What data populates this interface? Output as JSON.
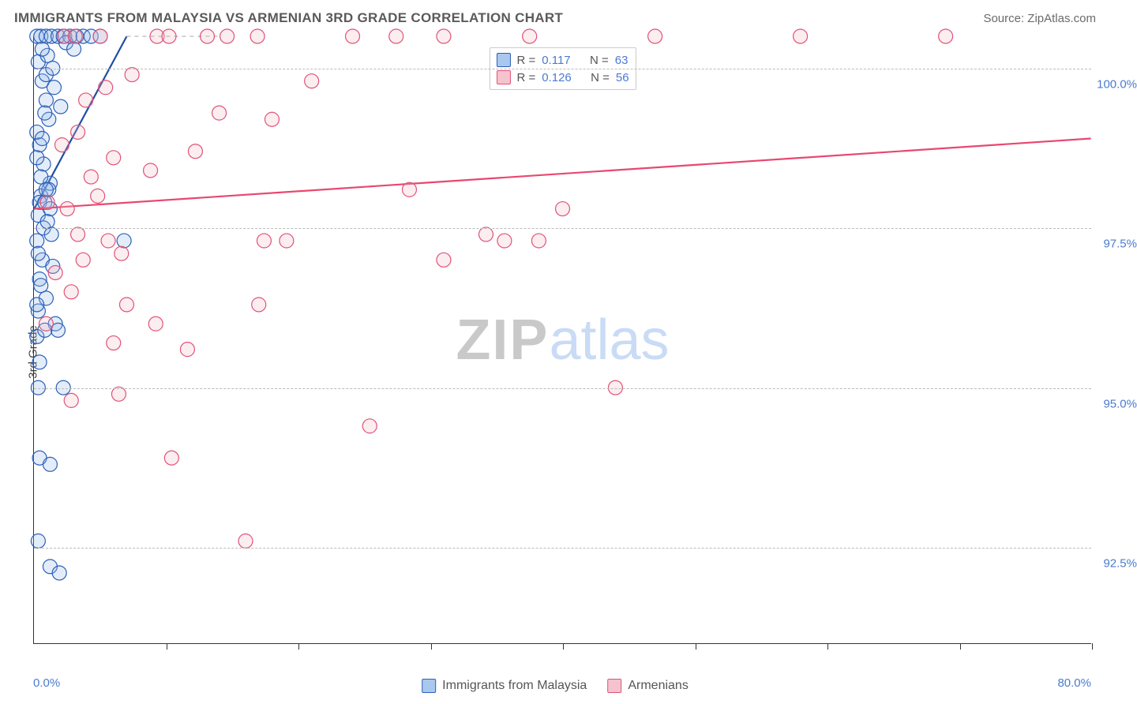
{
  "header": {
    "title": "IMMIGRANTS FROM MALAYSIA VS ARMENIAN 3RD GRADE CORRELATION CHART",
    "source": "Source: ZipAtlas.com"
  },
  "chart": {
    "type": "scatter",
    "ylabel": "3rd Grade",
    "xlim": [
      0,
      80
    ],
    "ylim": [
      91,
      100.5
    ],
    "xtick_positions": [
      0,
      10,
      20,
      30,
      40,
      50,
      60,
      70,
      80
    ],
    "xmin_label": "0.0%",
    "xmax_label": "80.0%",
    "yticks": [
      {
        "value": 92.5,
        "label": "92.5%"
      },
      {
        "value": 95.0,
        "label": "95.0%"
      },
      {
        "value": 97.5,
        "label": "97.5%"
      },
      {
        "value": 100.0,
        "label": "100.0%"
      }
    ],
    "background_color": "#ffffff",
    "grid_color": "#bbbbbb",
    "marker_radius": 9,
    "marker_stroke_width": 1.2,
    "marker_fill_opacity": 0.25,
    "trend_line_width": 2.2,
    "watermark": {
      "zip": "ZIP",
      "atlas": "atlas"
    },
    "legend_top": {
      "rows": [
        {
          "swatch_fill": "#a9c8ee",
          "swatch_stroke": "#2d5fb8",
          "r_label": "R =",
          "r_value": "0.117",
          "n_label": "N =",
          "n_value": "63"
        },
        {
          "swatch_fill": "#f4c3ce",
          "swatch_stroke": "#e05377",
          "r_label": "R =",
          "r_value": "0.126",
          "n_label": "N =",
          "n_value": "56"
        }
      ]
    },
    "legend_bottom": {
      "items": [
        {
          "swatch_fill": "#a9c8ee",
          "swatch_stroke": "#2d5fb8",
          "label": "Immigrants from Malaysia"
        },
        {
          "swatch_fill": "#f4c3ce",
          "swatch_stroke": "#e05377",
          "label": "Armenians"
        }
      ]
    },
    "series": [
      {
        "name": "malaysia",
        "fill": "#8fb7e8",
        "stroke": "#2d5fb8",
        "trend_color": "#1e4ea3",
        "trend": {
          "x1": 0,
          "y1": 97.8,
          "x2": 7,
          "y2": 100.5
        },
        "extrapolation": {
          "x1": 7,
          "y1": 100.5,
          "x2": 14,
          "y2": 100.5,
          "dash": "5,5",
          "color": "#c3c3c3"
        },
        "points": [
          [
            0.2,
            100.5
          ],
          [
            0.5,
            100.5
          ],
          [
            0.9,
            100.5
          ],
          [
            1.3,
            100.5
          ],
          [
            1.8,
            100.5
          ],
          [
            2.2,
            100.5
          ],
          [
            2.7,
            100.5
          ],
          [
            3.2,
            100.5
          ],
          [
            3.7,
            100.5
          ],
          [
            4.3,
            100.5
          ],
          [
            5.0,
            100.5
          ],
          [
            0.3,
            100.1
          ],
          [
            0.6,
            99.8
          ],
          [
            0.9,
            99.5
          ],
          [
            1.1,
            99.2
          ],
          [
            0.4,
            98.8
          ],
          [
            0.7,
            98.5
          ],
          [
            1.2,
            98.2
          ],
          [
            0.5,
            98.0
          ],
          [
            0.4,
            97.9
          ],
          [
            0.8,
            97.9
          ],
          [
            1.2,
            97.8
          ],
          [
            0.3,
            97.7
          ],
          [
            0.2,
            97.3
          ],
          [
            0.6,
            97.0
          ],
          [
            1.4,
            96.9
          ],
          [
            0.4,
            96.7
          ],
          [
            0.9,
            96.4
          ],
          [
            0.3,
            96.2
          ],
          [
            1.6,
            96.0
          ],
          [
            0.2,
            95.8
          ],
          [
            1.8,
            95.9
          ],
          [
            0.3,
            95.0
          ],
          [
            2.2,
            95.0
          ],
          [
            0.4,
            93.9
          ],
          [
            1.2,
            93.8
          ],
          [
            0.3,
            92.6
          ],
          [
            1.2,
            92.2
          ],
          [
            1.9,
            92.1
          ],
          [
            6.8,
            97.3
          ],
          [
            0.9,
            99.9
          ],
          [
            1.5,
            99.7
          ],
          [
            2.0,
            99.4
          ],
          [
            0.2,
            99.0
          ],
          [
            1.0,
            100.2
          ],
          [
            1.4,
            100.0
          ],
          [
            0.6,
            100.3
          ],
          [
            2.4,
            100.4
          ],
          [
            3.0,
            100.3
          ],
          [
            0.8,
            99.3
          ],
          [
            0.5,
            98.3
          ],
          [
            1.1,
            98.1
          ],
          [
            0.7,
            97.5
          ],
          [
            0.3,
            97.1
          ],
          [
            0.5,
            96.6
          ],
          [
            0.2,
            96.3
          ],
          [
            0.8,
            95.9
          ],
          [
            0.4,
            95.4
          ],
          [
            1.0,
            97.6
          ],
          [
            1.3,
            97.4
          ],
          [
            0.2,
            98.6
          ],
          [
            0.6,
            98.9
          ],
          [
            0.9,
            98.1
          ]
        ]
      },
      {
        "name": "armenians",
        "fill": "#f0b8c5",
        "stroke": "#e05377",
        "trend_color": "#e8486f",
        "trend": {
          "x1": 0,
          "y1": 97.8,
          "x2": 80,
          "y2": 98.9
        },
        "extrapolation": null,
        "points": [
          [
            2.3,
            100.5
          ],
          [
            3.1,
            100.5
          ],
          [
            5.0,
            100.5
          ],
          [
            9.3,
            100.5
          ],
          [
            10.2,
            100.5
          ],
          [
            13.1,
            100.5
          ],
          [
            14.6,
            100.5
          ],
          [
            16.9,
            100.5
          ],
          [
            24.1,
            100.5
          ],
          [
            27.4,
            100.5
          ],
          [
            31.0,
            100.5
          ],
          [
            37.5,
            100.5
          ],
          [
            47.0,
            100.5
          ],
          [
            58.0,
            100.5
          ],
          [
            69.0,
            100.5
          ],
          [
            5.4,
            99.7
          ],
          [
            3.9,
            99.5
          ],
          [
            2.1,
            98.8
          ],
          [
            7.4,
            99.9
          ],
          [
            18.0,
            99.2
          ],
          [
            12.2,
            98.7
          ],
          [
            8.8,
            98.4
          ],
          [
            4.3,
            98.3
          ],
          [
            1.0,
            97.9
          ],
          [
            2.5,
            97.8
          ],
          [
            3.3,
            97.4
          ],
          [
            5.6,
            97.3
          ],
          [
            17.4,
            97.3
          ],
          [
            19.1,
            97.3
          ],
          [
            31.0,
            97.0
          ],
          [
            34.2,
            97.4
          ],
          [
            35.6,
            97.3
          ],
          [
            38.2,
            97.3
          ],
          [
            28.4,
            98.1
          ],
          [
            40.0,
            97.8
          ],
          [
            1.6,
            96.8
          ],
          [
            2.8,
            96.5
          ],
          [
            7.0,
            96.3
          ],
          [
            9.2,
            96.0
          ],
          [
            17.0,
            96.3
          ],
          [
            6.0,
            95.7
          ],
          [
            16.0,
            92.6
          ],
          [
            44.0,
            95.0
          ],
          [
            10.4,
            93.9
          ],
          [
            25.4,
            94.4
          ],
          [
            6.4,
            94.9
          ],
          [
            2.8,
            94.8
          ],
          [
            3.7,
            97.0
          ],
          [
            6.6,
            97.1
          ],
          [
            11.6,
            95.6
          ],
          [
            0.9,
            96.0
          ],
          [
            3.3,
            99.0
          ],
          [
            4.8,
            98.0
          ],
          [
            6.0,
            98.6
          ],
          [
            14.0,
            99.3
          ],
          [
            21.0,
            99.8
          ]
        ]
      }
    ]
  }
}
